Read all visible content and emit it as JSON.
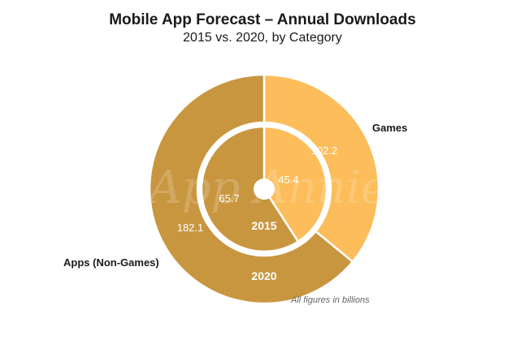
{
  "title": "Mobile App Forecast – Annual Downloads",
  "subtitle": "2015 vs. 2020, by Category",
  "footnote": "All figures in billions",
  "watermark": "App Annie",
  "colors": {
    "apps": "#C99640",
    "games": "#FCBD5A"
  },
  "chart_data": {
    "type": "pie",
    "variant": "nested-donut",
    "categories": [
      "Games",
      "Apps (Non-Games)"
    ],
    "series": [
      {
        "name": "2015",
        "ring": "inner",
        "values": [
          45.4,
          65.7
        ]
      },
      {
        "name": "2020",
        "ring": "outer",
        "values": [
          102.2,
          182.1
        ]
      }
    ],
    "unit": "billions"
  }
}
